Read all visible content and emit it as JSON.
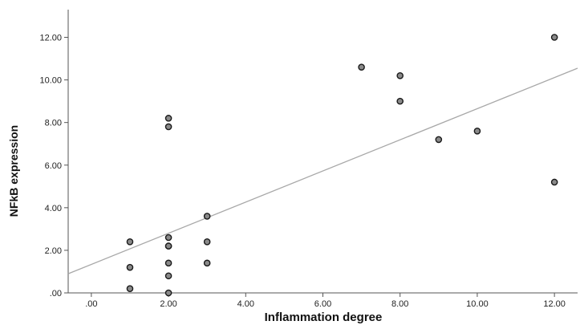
{
  "chart_data": {
    "type": "scatter",
    "title": "",
    "xlabel": "Inflammation degree",
    "ylabel": "NFkB expression",
    "xlim": [
      -0.6,
      12.6
    ],
    "ylim": [
      0,
      13.3
    ],
    "x_ticks": [
      0,
      2,
      4,
      6,
      8,
      10,
      12
    ],
    "x_tick_labels": [
      ".00",
      "2.00",
      "4.00",
      "6.00",
      "8.00",
      "10.00",
      "12.00"
    ],
    "y_ticks": [
      0,
      2,
      4,
      6,
      8,
      10,
      12
    ],
    "y_tick_labels": [
      ".00",
      "2.00",
      "4.00",
      "6.00",
      "8.00",
      "10.00",
      "12.00"
    ],
    "grid": false,
    "points": [
      {
        "x": 1,
        "y": 2.4
      },
      {
        "x": 1,
        "y": 1.2
      },
      {
        "x": 1,
        "y": 0.2
      },
      {
        "x": 2,
        "y": 8.2
      },
      {
        "x": 2,
        "y": 7.8
      },
      {
        "x": 2,
        "y": 2.6
      },
      {
        "x": 2,
        "y": 2.2
      },
      {
        "x": 2,
        "y": 2.2
      },
      {
        "x": 2,
        "y": 1.4
      },
      {
        "x": 2,
        "y": 0.8
      },
      {
        "x": 2,
        "y": 0.0
      },
      {
        "x": 3,
        "y": 3.6
      },
      {
        "x": 3,
        "y": 2.4
      },
      {
        "x": 3,
        "y": 1.4
      },
      {
        "x": 7,
        "y": 10.6
      },
      {
        "x": 8,
        "y": 10.2
      },
      {
        "x": 8,
        "y": 9.0
      },
      {
        "x": 9,
        "y": 7.2
      },
      {
        "x": 10,
        "y": 7.6
      },
      {
        "x": 12,
        "y": 12.0
      },
      {
        "x": 12,
        "y": 5.2
      }
    ],
    "fit_line": {
      "x": [
        -0.6,
        12.6
      ],
      "y": [
        0.9,
        10.55
      ]
    },
    "colors": {
      "marker_fill": "#8a8a8a",
      "marker_edge": "#1a1a1a",
      "fit_line": "#a8a8a8",
      "axis": "#555555"
    }
  }
}
